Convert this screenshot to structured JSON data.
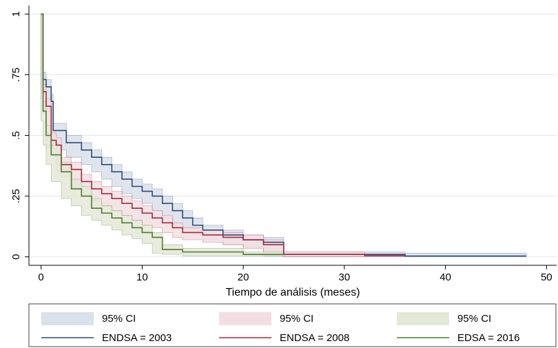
{
  "chart_data": {
    "type": "step",
    "xlabel": "Tiempo de análisis (meses)",
    "xlim": [
      -1.2,
      51
    ],
    "ylim": [
      -0.035,
      1.035
    ],
    "xticks": [
      0,
      10,
      20,
      30,
      40,
      50
    ],
    "yticks": [
      0,
      {
        "value": 0.25,
        "label": ".25"
      },
      {
        "value": 0.5,
        "label": ".5"
      },
      {
        "value": 0.75,
        "label": ".75"
      },
      1
    ],
    "grid": true,
    "legend": "bottom",
    "series": [
      {
        "name": "ENDSA = 2003",
        "ci_label": "95% CI",
        "color": "#2b4a7a",
        "ci_color": "#dbe1ea",
        "x": [
          0,
          0.2,
          0.5,
          1,
          1.2,
          2.5,
          4,
          5,
          6,
          7,
          8,
          9,
          10,
          11,
          12,
          13,
          14,
          15,
          16,
          18,
          20,
          22,
          24,
          36,
          48
        ],
        "values": [
          1,
          0.73,
          0.7,
          0.64,
          0.52,
          0.47,
          0.44,
          0.41,
          0.38,
          0.35,
          0.32,
          0.29,
          0.27,
          0.25,
          0.22,
          0.19,
          0.16,
          0.13,
          0.11,
          0.09,
          0.07,
          0.06,
          0.01,
          0.003,
          0.003
        ],
        "lower": [
          1,
          0.7,
          0.67,
          0.6,
          0.49,
          0.44,
          0.41,
          0.38,
          0.35,
          0.32,
          0.29,
          0.26,
          0.24,
          0.22,
          0.19,
          0.16,
          0.13,
          0.1,
          0.09,
          0.07,
          0.05,
          0.04,
          0.003,
          0.001,
          0.001
        ],
        "upper": [
          1,
          0.76,
          0.73,
          0.67,
          0.55,
          0.5,
          0.47,
          0.44,
          0.41,
          0.38,
          0.35,
          0.32,
          0.3,
          0.28,
          0.25,
          0.22,
          0.19,
          0.16,
          0.13,
          0.11,
          0.09,
          0.08,
          0.02,
          0.015,
          0.015
        ]
      },
      {
        "name": "ENDSA = 2008",
        "ci_label": "95% CI",
        "color": "#a3283f",
        "ci_color": "#f3dfe2",
        "x": [
          0,
          0.2,
          0.5,
          1,
          1.5,
          2,
          3,
          4,
          5,
          6,
          7,
          8,
          9,
          10,
          11,
          12,
          13,
          14,
          16,
          18,
          20,
          22,
          24,
          32,
          36
        ],
        "values": [
          1,
          0.68,
          0.62,
          0.48,
          0.46,
          0.38,
          0.36,
          0.31,
          0.28,
          0.26,
          0.24,
          0.22,
          0.2,
          0.18,
          0.16,
          0.14,
          0.12,
          0.1,
          0.09,
          0.08,
          0.07,
          0.05,
          0.01,
          0.005,
          0.005
        ],
        "lower": [
          1,
          0.65,
          0.59,
          0.45,
          0.43,
          0.35,
          0.33,
          0.28,
          0.25,
          0.23,
          0.21,
          0.19,
          0.17,
          0.15,
          0.13,
          0.12,
          0.1,
          0.08,
          0.07,
          0.06,
          0.05,
          0.035,
          0.004,
          0.001,
          0.001
        ],
        "upper": [
          1,
          0.71,
          0.65,
          0.51,
          0.49,
          0.41,
          0.39,
          0.34,
          0.31,
          0.29,
          0.27,
          0.25,
          0.23,
          0.21,
          0.19,
          0.17,
          0.14,
          0.12,
          0.11,
          0.1,
          0.09,
          0.07,
          0.02,
          0.01,
          0.01
        ]
      },
      {
        "name": "EDSA = 2016",
        "ci_label": "95% CI",
        "color": "#4f7a2d",
        "ci_color": "#e4e8d8",
        "x": [
          0,
          0.2,
          0.5,
          1,
          2,
          3,
          4,
          5,
          6,
          7,
          8,
          9,
          10,
          11,
          12,
          14,
          20,
          24
        ],
        "values": [
          1,
          0.6,
          0.5,
          0.42,
          0.35,
          0.28,
          0.25,
          0.2,
          0.18,
          0.16,
          0.14,
          0.12,
          0.1,
          0.08,
          0.03,
          0.02,
          0.01,
          0.01
        ],
        "lower": [
          1,
          0.56,
          0.46,
          0.38,
          0.31,
          0.24,
          0.21,
          0.17,
          0.15,
          0.13,
          0.11,
          0.09,
          0.075,
          0.055,
          0.015,
          0.01,
          0.003,
          0.003
        ],
        "upper": [
          1,
          0.64,
          0.54,
          0.46,
          0.39,
          0.32,
          0.29,
          0.24,
          0.21,
          0.19,
          0.17,
          0.15,
          0.13,
          0.1,
          0.05,
          0.035,
          0.02,
          0.02
        ]
      }
    ]
  }
}
